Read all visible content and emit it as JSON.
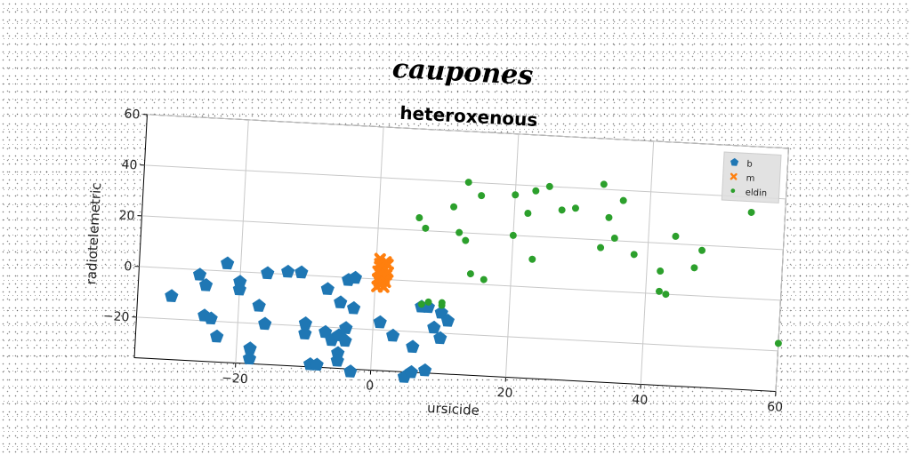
{
  "chart_data": {
    "type": "scatter",
    "supertitle": "caupones",
    "title": "heteroxenous",
    "xlabel": "ursicide",
    "ylabel": "radiotelemetric",
    "xlim": [
      -35,
      60
    ],
    "ylim": [
      -36,
      60
    ],
    "xticks": [
      -20,
      0,
      20,
      40,
      60
    ],
    "yticks": [
      -20,
      0,
      20,
      40,
      60
    ],
    "xtick_labels": [
      "−20",
      "0",
      "20",
      "40",
      "60"
    ],
    "ytick_labels": [
      "−20",
      "0",
      "20",
      "40",
      "60"
    ],
    "grid": true,
    "legend_position": "top-right",
    "series": [
      {
        "name": "b",
        "marker": "pentagon",
        "color": "#1f77b4",
        "points": [
          [
            -30,
            -11
          ],
          [
            -26,
            -2
          ],
          [
            -25,
            -6
          ],
          [
            -25,
            -18
          ],
          [
            -24,
            -19
          ],
          [
            -23,
            -26
          ],
          [
            -22,
            3
          ],
          [
            -20,
            -4
          ],
          [
            -20,
            -7
          ],
          [
            -18,
            -30
          ],
          [
            -18,
            -34
          ],
          [
            -17,
            -13
          ],
          [
            -16,
            -20
          ],
          [
            -16,
            0
          ],
          [
            -13,
            1
          ],
          [
            -11,
            1
          ],
          [
            -10,
            -23
          ],
          [
            -10,
            -19
          ],
          [
            -9,
            -35
          ],
          [
            -8,
            -35
          ],
          [
            -7,
            -5
          ],
          [
            -7,
            -22
          ],
          [
            -6,
            -25
          ],
          [
            -5,
            -23
          ],
          [
            -5,
            -10
          ],
          [
            -5,
            -30
          ],
          [
            -5,
            -33
          ],
          [
            -4,
            -25
          ],
          [
            -4,
            -20
          ],
          [
            -4,
            -1
          ],
          [
            -3,
            -37
          ],
          [
            -3,
            -12
          ],
          [
            -3,
            0
          ],
          [
            1,
            -17
          ],
          [
            3,
            -22
          ],
          [
            5,
            -38
          ],
          [
            6,
            -36
          ],
          [
            6,
            -26
          ],
          [
            7,
            -10
          ],
          [
            8,
            -35
          ],
          [
            8,
            -10
          ],
          [
            9,
            -18
          ],
          [
            10,
            -22
          ],
          [
            10,
            -12
          ],
          [
            11,
            -15
          ]
        ]
      },
      {
        "name": "m",
        "marker": "x",
        "color": "#ff7f0e",
        "points": [
          [
            0.3,
            -3
          ],
          [
            0.3,
            0
          ],
          [
            0.3,
            3
          ],
          [
            0.5,
            6
          ],
          [
            0.5,
            8
          ],
          [
            0.6,
            -1
          ],
          [
            0.6,
            2
          ],
          [
            0.7,
            5
          ],
          [
            0.8,
            -2
          ],
          [
            1.3,
            -3
          ],
          [
            1.3,
            1
          ],
          [
            1.3,
            4
          ],
          [
            1.4,
            7
          ],
          [
            1.5,
            -1
          ],
          [
            1.6,
            2
          ],
          [
            1.7,
            6
          ],
          [
            1.8,
            3
          ]
        ]
      },
      {
        "name": "eldin",
        "marker": "circle",
        "color": "#2ca02c",
        "points": [
          [
            6,
            25
          ],
          [
            7,
            21
          ],
          [
            7,
            -9
          ],
          [
            8,
            -8
          ],
          [
            10,
            -9
          ],
          [
            10,
            -8
          ],
          [
            11,
            30
          ],
          [
            12,
            20
          ],
          [
            13,
            40
          ],
          [
            13,
            17
          ],
          [
            14,
            4
          ],
          [
            15,
            35
          ],
          [
            16,
            2
          ],
          [
            20,
            36
          ],
          [
            20,
            20
          ],
          [
            22,
            29
          ],
          [
            23,
            11
          ],
          [
            23,
            38
          ],
          [
            25,
            40
          ],
          [
            27,
            31
          ],
          [
            29,
            32
          ],
          [
            33,
            17
          ],
          [
            33,
            42
          ],
          [
            34,
            29
          ],
          [
            35,
            21
          ],
          [
            36,
            36
          ],
          [
            38,
            15
          ],
          [
            42,
            9
          ],
          [
            42,
            1
          ],
          [
            43,
            0
          ],
          [
            44,
            23
          ],
          [
            47,
            11
          ],
          [
            48,
            18
          ],
          [
            55,
            34
          ],
          [
            60,
            -17
          ]
        ]
      }
    ]
  }
}
